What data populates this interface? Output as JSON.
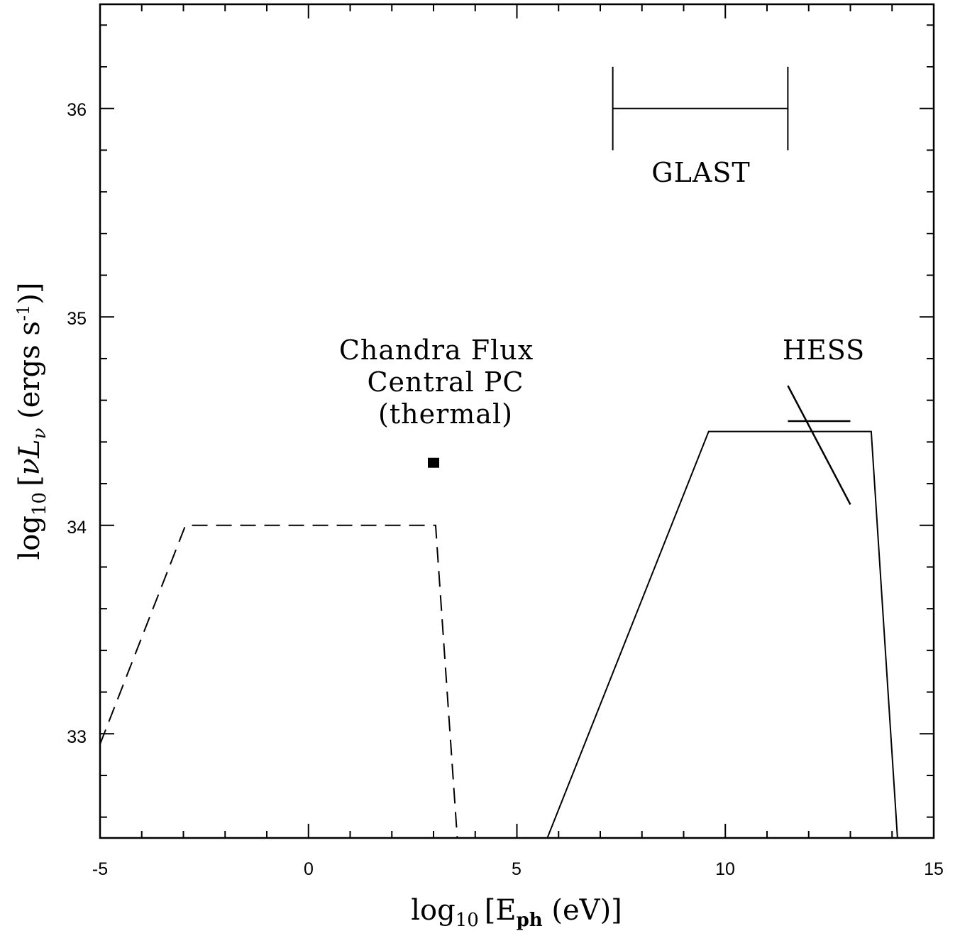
{
  "chart_data": {
    "type": "line",
    "xlabel": {
      "prefix": "log",
      "sub": "10",
      "bracket_open": "[",
      "var": "E",
      "var_sub": "ph",
      "unit": " (eV)",
      "bracket_close": "]"
    },
    "ylabel": {
      "prefix": "log",
      "sub": "10",
      "bracket_open": "[",
      "var": "νL",
      "var_sub": "ν",
      "unit_pre": " (ergs s",
      "unit_sup": "-1",
      "unit_post": ")",
      "bracket_close": "]"
    },
    "xlim": [
      -5,
      15
    ],
    "ylim": [
      32.5,
      36.5
    ],
    "x_ticks": [
      "-5",
      "0",
      "5",
      "10",
      "15"
    ],
    "y_ticks": [
      "33",
      "34",
      "35",
      "36"
    ],
    "series": [
      {
        "style": "dashed",
        "x": [
          -5.0,
          -2.95,
          3.05,
          3.57
        ],
        "y": [
          32.95,
          34.0,
          34.0,
          32.5
        ]
      },
      {
        "style": "solid",
        "x": [
          5.73,
          9.6,
          13.5,
          14.13
        ],
        "y": [
          32.5,
          34.45,
          34.45,
          32.5
        ]
      }
    ],
    "points": [
      {
        "x": 3.0,
        "y": 34.3,
        "marker": "filled-square"
      }
    ],
    "glast_range": {
      "x": [
        7.3,
        11.5
      ],
      "y": 36.0,
      "cap_half_height": 0.2
    },
    "hess_segments": [
      {
        "x": [
          11.5,
          13.0
        ],
        "y": [
          34.67,
          34.1
        ]
      },
      {
        "x": [
          11.5,
          13.0
        ],
        "y": [
          34.5,
          34.5
        ]
      }
    ],
    "annotations": {
      "glast": "GLAST",
      "hess": "HESS",
      "chandra": [
        "Chandra Flux",
        "Central PC",
        "(thermal)"
      ]
    }
  }
}
